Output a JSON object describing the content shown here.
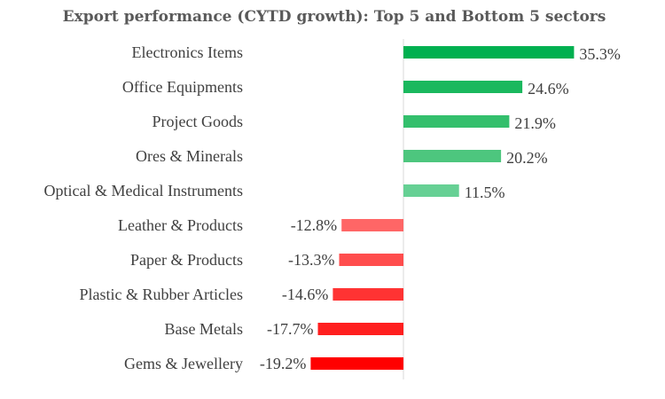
{
  "chart_data": {
    "type": "bar",
    "orientation": "horizontal",
    "title": "Export performance (CYTD growth): Top 5 and Bottom 5 sectors",
    "xlabel": "",
    "ylabel": "",
    "value_suffix": "%",
    "xlim": [
      -20,
      40
    ],
    "grid": false,
    "categories": [
      "Electronics Items",
      "Office Equipments",
      "Project Goods",
      "Ores & Minerals",
      "Optical & Medical Instruments",
      "Leather & Products",
      "Paper & Products",
      "Plastic & Rubber Articles",
      "Base Metals",
      "Gems & Jewellery"
    ],
    "values": [
      35.3,
      24.6,
      21.9,
      20.2,
      11.5,
      -12.8,
      -13.3,
      -14.6,
      -17.7,
      -19.2
    ],
    "colors": [
      "#00b050",
      "#1ab85e",
      "#33bf6c",
      "#4dc67e",
      "#66d094",
      "#ff6666",
      "#ff4d4d",
      "#ff3333",
      "#ff1f1f",
      "#ff0000"
    ],
    "value_labels": [
      "35.3%",
      "24.6%",
      "21.9%",
      "20.2%",
      "11.5%",
      "-12.8%",
      "-13.3%",
      "-14.6%",
      "-17.7%",
      "-19.2%"
    ]
  }
}
